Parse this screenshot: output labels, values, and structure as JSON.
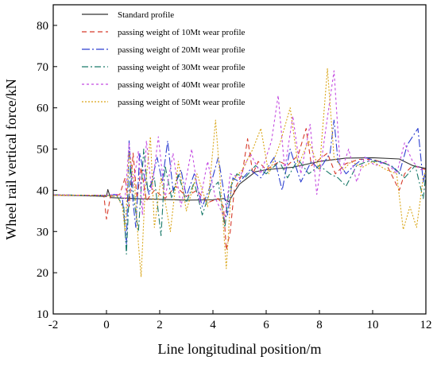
{
  "chart_data": {
    "type": "line",
    "title": "",
    "xlabel": "Line longitudinal position/m",
    "ylabel": "Wheel rail vertical force/kN",
    "xlim": [
      -2,
      12
    ],
    "ylim": [
      10,
      85
    ],
    "xticks": [
      -2,
      0,
      2,
      4,
      6,
      8,
      10,
      12
    ],
    "yticks": [
      10,
      20,
      30,
      40,
      50,
      60,
      70,
      80
    ],
    "grid": false,
    "legend_position": "top-left",
    "series": [
      {
        "name": "Standard profile",
        "color": "#333333",
        "dash": "solid",
        "points": [
          [
            -2,
            38.8
          ],
          [
            -1,
            38.7
          ],
          [
            0,
            38.5
          ],
          [
            0.05,
            40.2
          ],
          [
            0.15,
            38.2
          ],
          [
            1,
            38.0
          ],
          [
            2,
            37.8
          ],
          [
            3,
            37.6
          ],
          [
            4,
            37.7
          ],
          [
            4.4,
            38.0
          ],
          [
            4.6,
            37.2
          ],
          [
            4.8,
            39.5
          ],
          [
            5.0,
            41.5
          ],
          [
            5.3,
            43.0
          ],
          [
            5.6,
            44.5
          ],
          [
            6,
            45.0
          ],
          [
            7,
            45.6
          ],
          [
            8,
            47.0
          ],
          [
            9,
            47.8
          ],
          [
            10,
            47.9
          ],
          [
            11,
            47.6
          ],
          [
            11.5,
            46.0
          ],
          [
            12,
            45.3
          ]
        ]
      },
      {
        "name": "passing weight of 10Mt wear profile",
        "color": "#d63a2a",
        "dash": "6,4",
        "points": [
          [
            -2,
            38.8
          ],
          [
            -1,
            38.8
          ],
          [
            -0.1,
            38.7
          ],
          [
            0,
            33.0
          ],
          [
            0.15,
            38.5
          ],
          [
            0.5,
            39.0
          ],
          [
            0.7,
            43.0
          ],
          [
            0.85,
            36.0
          ],
          [
            1.0,
            49.0
          ],
          [
            1.15,
            38.0
          ],
          [
            1.3,
            45.5
          ],
          [
            1.5,
            37.5
          ],
          [
            1.8,
            40.0
          ],
          [
            2.2,
            38.0
          ],
          [
            2.6,
            41.0
          ],
          [
            3.0,
            38.5
          ],
          [
            3.4,
            40.0
          ],
          [
            3.8,
            37.0
          ],
          [
            4.2,
            38.0
          ],
          [
            4.4,
            36.0
          ],
          [
            4.5,
            25.5
          ],
          [
            4.65,
            30.0
          ],
          [
            4.8,
            40.0
          ],
          [
            5.1,
            44.0
          ],
          [
            5.3,
            52.5
          ],
          [
            5.5,
            44.0
          ],
          [
            5.7,
            47.0
          ],
          [
            6.0,
            45.0
          ],
          [
            6.5,
            47.0
          ],
          [
            6.8,
            46.0
          ],
          [
            7.2,
            48.5
          ],
          [
            7.5,
            55.0
          ],
          [
            7.7,
            46.0
          ],
          [
            8.0,
            47.5
          ],
          [
            8.3,
            49.0
          ],
          [
            8.6,
            44.0
          ],
          [
            9.0,
            46.5
          ],
          [
            9.5,
            47.5
          ],
          [
            10,
            47.5
          ],
          [
            10.5,
            46.5
          ],
          [
            11.0,
            40.0
          ],
          [
            11.2,
            44.0
          ],
          [
            11.5,
            46.0
          ],
          [
            12,
            45.0
          ]
        ]
      },
      {
        "name": "passing weight of 20Mt wear profile",
        "color": "#2c3fd0",
        "dash": "10,3,2,3",
        "points": [
          [
            -2,
            38.9
          ],
          [
            -1,
            38.8
          ],
          [
            0,
            38.7
          ],
          [
            0.3,
            39.0
          ],
          [
            0.6,
            38.0
          ],
          [
            0.75,
            27.0
          ],
          [
            0.85,
            52.0
          ],
          [
            0.95,
            40.0
          ],
          [
            1.1,
            31.0
          ],
          [
            1.25,
            49.0
          ],
          [
            1.4,
            44.0
          ],
          [
            1.6,
            39.0
          ],
          [
            1.9,
            48.0
          ],
          [
            2.1,
            42.0
          ],
          [
            2.3,
            52.0
          ],
          [
            2.5,
            40.0
          ],
          [
            2.8,
            45.0
          ],
          [
            3.0,
            38.5
          ],
          [
            3.3,
            44.0
          ],
          [
            3.6,
            36.0
          ],
          [
            3.9,
            41.0
          ],
          [
            4.2,
            48.0
          ],
          [
            4.4,
            40.0
          ],
          [
            4.55,
            34.0
          ],
          [
            4.75,
            43.0
          ],
          [
            5.0,
            42.0
          ],
          [
            5.4,
            45.0
          ],
          [
            5.8,
            43.0
          ],
          [
            6.3,
            48.0
          ],
          [
            6.6,
            40.0
          ],
          [
            6.9,
            50.0
          ],
          [
            7.3,
            42.0
          ],
          [
            7.7,
            47.0
          ],
          [
            8.0,
            45.0
          ],
          [
            8.4,
            49.0
          ],
          [
            8.55,
            57.0
          ],
          [
            8.7,
            47.0
          ],
          [
            9.0,
            44.0
          ],
          [
            9.3,
            46.0
          ],
          [
            9.7,
            48.0
          ],
          [
            10.2,
            47.0
          ],
          [
            10.7,
            46.0
          ],
          [
            11.0,
            44.0
          ],
          [
            11.3,
            51.0
          ],
          [
            11.7,
            55.0
          ],
          [
            11.9,
            42.0
          ],
          [
            12,
            45.0
          ]
        ]
      },
      {
        "name": "passing weight of 30Mt wear profile",
        "color": "#1a7a6a",
        "dash": "8,3,2,3",
        "points": [
          [
            -2,
            38.9
          ],
          [
            -1,
            38.8
          ],
          [
            0,
            38.8
          ],
          [
            0.4,
            38.5
          ],
          [
            0.65,
            36.0
          ],
          [
            0.75,
            24.5
          ],
          [
            0.9,
            46.0
          ],
          [
            1.05,
            37.0
          ],
          [
            1.2,
            30.0
          ],
          [
            1.4,
            50.0
          ],
          [
            1.55,
            40.0
          ],
          [
            1.8,
            43.0
          ],
          [
            2.05,
            29.0
          ],
          [
            2.2,
            46.0
          ],
          [
            2.45,
            38.0
          ],
          [
            2.7,
            44.0
          ],
          [
            3.0,
            37.0
          ],
          [
            3.3,
            42.0
          ],
          [
            3.6,
            34.0
          ],
          [
            3.9,
            40.0
          ],
          [
            4.2,
            42.0
          ],
          [
            4.45,
            31.0
          ],
          [
            4.6,
            40.0
          ],
          [
            4.9,
            44.0
          ],
          [
            5.2,
            43.0
          ],
          [
            5.6,
            46.0
          ],
          [
            6.0,
            44.0
          ],
          [
            6.5,
            47.0
          ],
          [
            6.8,
            43.0
          ],
          [
            7.2,
            47.5
          ],
          [
            7.6,
            44.0
          ],
          [
            8.0,
            46.0
          ],
          [
            8.4,
            44.0
          ],
          [
            8.7,
            43.0
          ],
          [
            9.0,
            41.0
          ],
          [
            9.4,
            46.0
          ],
          [
            9.8,
            47.0
          ],
          [
            10.3,
            47.0
          ],
          [
            10.8,
            45.5
          ],
          [
            11.2,
            43.0
          ],
          [
            11.6,
            46.0
          ],
          [
            11.9,
            38.0
          ],
          [
            12,
            44.0
          ]
        ]
      },
      {
        "name": "passing weight of 40Mt wear profile",
        "color": "#c44be0",
        "dash": "3,3",
        "points": [
          [
            -2,
            38.9
          ],
          [
            -1,
            38.8
          ],
          [
            0,
            38.8
          ],
          [
            0.4,
            39.0
          ],
          [
            0.7,
            38.0
          ],
          [
            0.85,
            51.5
          ],
          [
            1.0,
            41.0
          ],
          [
            1.2,
            49.5
          ],
          [
            1.35,
            34.0
          ],
          [
            1.5,
            52.0
          ],
          [
            1.7,
            40.0
          ],
          [
            1.95,
            53.0
          ],
          [
            2.2,
            38.0
          ],
          [
            2.5,
            49.0
          ],
          [
            2.8,
            36.0
          ],
          [
            3.2,
            50.0
          ],
          [
            3.5,
            37.0
          ],
          [
            3.8,
            47.0
          ],
          [
            4.1,
            38.0
          ],
          [
            4.45,
            33.0
          ],
          [
            4.65,
            44.0
          ],
          [
            5.0,
            43.0
          ],
          [
            5.4,
            49.0
          ],
          [
            5.8,
            44.0
          ],
          [
            6.2,
            52.0
          ],
          [
            6.45,
            63.0
          ],
          [
            6.7,
            45.0
          ],
          [
            7.0,
            58.0
          ],
          [
            7.3,
            44.0
          ],
          [
            7.65,
            56.0
          ],
          [
            7.9,
            39.0
          ],
          [
            8.2,
            53.0
          ],
          [
            8.55,
            69.0
          ],
          [
            8.8,
            44.0
          ],
          [
            9.1,
            50.0
          ],
          [
            9.4,
            42.0
          ],
          [
            9.7,
            48.0
          ],
          [
            10.1,
            46.0
          ],
          [
            10.5,
            47.0
          ],
          [
            10.9,
            44.0
          ],
          [
            11.2,
            51.5
          ],
          [
            11.5,
            47.0
          ],
          [
            11.8,
            45.0
          ],
          [
            12,
            45.0
          ]
        ]
      },
      {
        "name": "passing weight of 50Mt wear profile",
        "color": "#d9a516",
        "dash": "2,2",
        "points": [
          [
            -2,
            38.8
          ],
          [
            -1,
            38.8
          ],
          [
            0,
            38.7
          ],
          [
            0.4,
            38.6
          ],
          [
            0.6,
            36.0
          ],
          [
            0.7,
            30.0
          ],
          [
            0.85,
            49.0
          ],
          [
            1.05,
            42.0
          ],
          [
            1.2,
            27.0
          ],
          [
            1.3,
            19.0
          ],
          [
            1.45,
            40.0
          ],
          [
            1.65,
            53.0
          ],
          [
            1.8,
            31.0
          ],
          [
            2.05,
            43.0
          ],
          [
            2.4,
            30.0
          ],
          [
            2.7,
            47.0
          ],
          [
            3.0,
            35.0
          ],
          [
            3.4,
            44.0
          ],
          [
            3.8,
            36.0
          ],
          [
            4.1,
            57.0
          ],
          [
            4.3,
            40.0
          ],
          [
            4.5,
            21.0
          ],
          [
            4.7,
            42.0
          ],
          [
            5.1,
            45.0
          ],
          [
            5.5,
            50.0
          ],
          [
            5.8,
            55.0
          ],
          [
            6.1,
            44.0
          ],
          [
            6.5,
            51.0
          ],
          [
            6.9,
            60.0
          ],
          [
            7.2,
            46.0
          ],
          [
            7.6,
            52.0
          ],
          [
            8.0,
            45.0
          ],
          [
            8.3,
            69.5
          ],
          [
            8.55,
            48.0
          ],
          [
            8.9,
            45.0
          ],
          [
            9.2,
            47.0
          ],
          [
            9.6,
            45.5
          ],
          [
            10.0,
            47.0
          ],
          [
            10.5,
            45.0
          ],
          [
            10.9,
            44.0
          ],
          [
            11.15,
            30.5
          ],
          [
            11.4,
            36.0
          ],
          [
            11.65,
            31.0
          ],
          [
            11.9,
            43.0
          ],
          [
            12,
            45.0
          ]
        ]
      }
    ]
  }
}
